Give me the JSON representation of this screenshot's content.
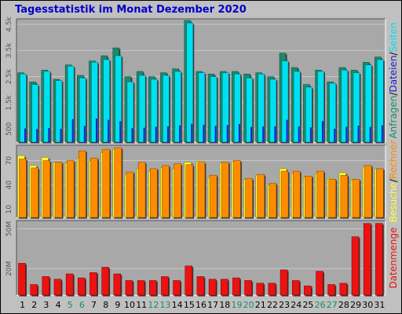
{
  "title": "Tagesstatistik im Monat Dezember 2020",
  "colors": {
    "anfragen": "#1a8a6a",
    "dateien": "#00e0f0",
    "seiten": "#1f1fcc",
    "rechner": "#ff8c00",
    "besuche": "#ffff33",
    "datenmenge": "#ee1111",
    "panel_bg": "#a8a8a8",
    "grid": "#c8c8c8",
    "weekend_label": "#1a8a6a",
    "weekday_label": "#000000"
  },
  "chart_data": [
    {
      "type": "bar",
      "name": "requests-files-pages",
      "categories": [
        "1",
        "2",
        "3",
        "4",
        "5",
        "6",
        "7",
        "8",
        "9",
        "10",
        "11",
        "12",
        "13",
        "14",
        "15",
        "16",
        "17",
        "18",
        "19",
        "20",
        "21",
        "22",
        "23",
        "24",
        "25",
        "26",
        "27",
        "28",
        "29",
        "30",
        "31"
      ],
      "weekend_days": [
        5,
        6,
        12,
        13,
        19,
        20,
        26,
        27
      ],
      "series": [
        {
          "name": "Anfragen",
          "color_key": "anfragen",
          "values": [
            2650,
            2300,
            2750,
            2400,
            2950,
            2550,
            3100,
            3300,
            3600,
            2500,
            2700,
            2500,
            2650,
            2800,
            4650,
            2700,
            2600,
            2700,
            2700,
            2600,
            2650,
            2500,
            3400,
            2850,
            2200,
            2750,
            2300,
            2850,
            2750,
            3050,
            3250
          ]
        },
        {
          "name": "Dateien",
          "color_key": "dateien",
          "values": [
            2600,
            2200,
            2700,
            2350,
            2900,
            2450,
            3050,
            3150,
            3300,
            2300,
            2550,
            2400,
            2550,
            2700,
            4550,
            2650,
            2500,
            2650,
            2600,
            2450,
            2600,
            2400,
            3100,
            2700,
            2100,
            2700,
            2250,
            2750,
            2650,
            2950,
            3150
          ]
        },
        {
          "name": "Seiten",
          "color_key": "seiten",
          "values": [
            520,
            500,
            540,
            510,
            880,
            620,
            900,
            850,
            800,
            530,
            550,
            590,
            600,
            640,
            700,
            660,
            620,
            650,
            690,
            580,
            600,
            600,
            850,
            600,
            560,
            800,
            510,
            590,
            630,
            580,
            640
          ]
        }
      ],
      "yticks": [
        "500",
        "1.5k",
        "2.5k",
        "3.5k",
        "4.5k"
      ],
      "ytick_values": [
        500,
        1500,
        2500,
        3500,
        4500
      ],
      "ylim": [
        0,
        4650
      ],
      "right_label_parts": [
        {
          "text": "Anfragen",
          "color_key": "anfragen"
        },
        {
          "text": "/",
          "color_key": "weekday_label"
        },
        {
          "text": "Dateien",
          "color_key": "seiten"
        },
        {
          "text": "/",
          "color_key": "weekday_label"
        },
        {
          "text": "Seiten",
          "color_key": "dateien"
        }
      ]
    },
    {
      "type": "bar",
      "name": "visits-hosts",
      "categories": [
        "1",
        "2",
        "3",
        "4",
        "5",
        "6",
        "7",
        "8",
        "9",
        "10",
        "11",
        "12",
        "13",
        "14",
        "15",
        "16",
        "17",
        "18",
        "19",
        "20",
        "21",
        "22",
        "23",
        "24",
        "25",
        "26",
        "27",
        "28",
        "29",
        "30",
        "31"
      ],
      "series": [
        {
          "name": "Besuche",
          "color_key": "besuche",
          "values": [
            76,
            64,
            74,
            68,
            67,
            73,
            70,
            80,
            84,
            53,
            60,
            57,
            61,
            60,
            68,
            69,
            49,
            67,
            69,
            47,
            52,
            40,
            60,
            54,
            49,
            54,
            48,
            55,
            46,
            62,
            60
          ]
        },
        {
          "name": "Rechner",
          "color_key": "rechner",
          "values": [
            72,
            61,
            70,
            68,
            70,
            82,
            73,
            84,
            86,
            56,
            68,
            60,
            64,
            66,
            65,
            68,
            52,
            68,
            70,
            48,
            53,
            42,
            57,
            57,
            51,
            57,
            47,
            52,
            47,
            64,
            60
          ]
        }
      ],
      "yticks": [
        "10",
        "40",
        "70"
      ],
      "ytick_values": [
        10,
        40,
        70
      ],
      "ylim": [
        0,
        87
      ],
      "right_label_parts": [
        {
          "text": "Besuche",
          "color_key": "besuche"
        },
        {
          "text": "/",
          "color_key": "weekday_label"
        },
        {
          "text": "Rechner",
          "color_key": "rechner"
        }
      ]
    },
    {
      "type": "bar",
      "name": "data-volume",
      "categories": [
        "1",
        "2",
        "3",
        "4",
        "5",
        "6",
        "7",
        "8",
        "9",
        "10",
        "11",
        "12",
        "13",
        "14",
        "15",
        "16",
        "17",
        "18",
        "19",
        "20",
        "21",
        "22",
        "23",
        "24",
        "25",
        "26",
        "27",
        "28",
        "29",
        "30",
        "31"
      ],
      "series": [
        {
          "name": "Datenmenge",
          "color_key": "datenmenge",
          "values": [
            24,
            8,
            14,
            12,
            16,
            13,
            17,
            21,
            16,
            11,
            11,
            11,
            14,
            11,
            22,
            14,
            12,
            12,
            13,
            11,
            9,
            9,
            19,
            11,
            7,
            18,
            8,
            9,
            44,
            54,
            54
          ]
        }
      ],
      "yticks": [
        "20M",
        "50M"
      ],
      "ytick_values": [
        20,
        50
      ],
      "ylim": [
        0,
        55
      ],
      "right_label_parts": [
        {
          "text": "Datenmenge",
          "color_key": "datenmenge"
        }
      ]
    }
  ]
}
